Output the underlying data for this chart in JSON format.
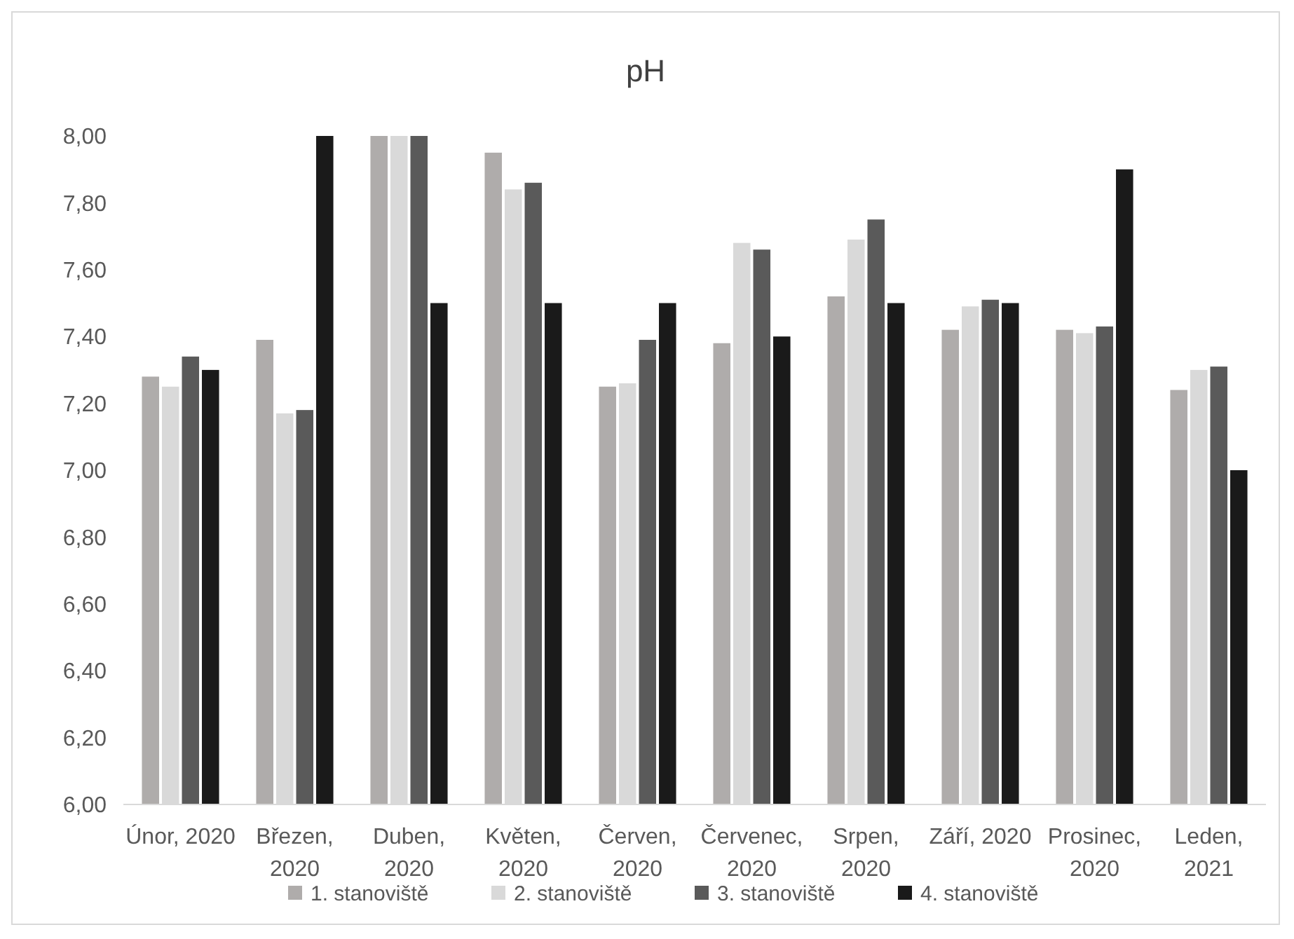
{
  "chart_data": {
    "type": "bar",
    "title": "pH",
    "categories": [
      "Únor, 2020",
      "Březen, 2020",
      "Duben, 2020",
      "Květen, 2020",
      "Červen, 2020",
      "Červenec, 2020",
      "Srpen, 2020",
      "Září, 2020",
      "Prosinec, 2020",
      "Leden, 2021"
    ],
    "series": [
      {
        "name": "1. stanoviště",
        "color": "#afacab",
        "values": [
          7.28,
          7.39,
          8.0,
          7.95,
          7.25,
          7.38,
          7.52,
          7.42,
          7.42,
          7.24
        ]
      },
      {
        "name": "2. stanoviště",
        "color": "#d9d9d9",
        "values": [
          7.25,
          7.17,
          8.0,
          7.84,
          7.26,
          7.68,
          7.69,
          7.49,
          7.41,
          7.3
        ]
      },
      {
        "name": "3. stanoviště",
        "color": "#5a5a5a",
        "values": [
          7.34,
          7.18,
          8.0,
          7.86,
          7.39,
          7.66,
          7.75,
          7.51,
          7.43,
          7.31
        ]
      },
      {
        "name": "4. stanoviště",
        "color": "#1a1a1a",
        "values": [
          7.3,
          8.0,
          7.5,
          7.5,
          7.5,
          7.4,
          7.5,
          7.5,
          7.9,
          7.0
        ]
      }
    ],
    "ylim": [
      6,
      8
    ],
    "yticks": [
      {
        "value": 6,
        "label": "6,00"
      },
      {
        "value": 6.2,
        "label": "6,20"
      },
      {
        "value": 6.4,
        "label": "6,40"
      },
      {
        "value": 6.6,
        "label": "6,60"
      },
      {
        "value": 6.8,
        "label": "6,80"
      },
      {
        "value": 7,
        "label": "7,00"
      },
      {
        "value": 7.2,
        "label": "7,20"
      },
      {
        "value": 7.4,
        "label": "7,40"
      },
      {
        "value": 7.6,
        "label": "7,60"
      },
      {
        "value": 7.8,
        "label": "7,80"
      },
      {
        "value": 8,
        "label": "8,00"
      }
    ],
    "grid": false,
    "legend": "bottom"
  }
}
